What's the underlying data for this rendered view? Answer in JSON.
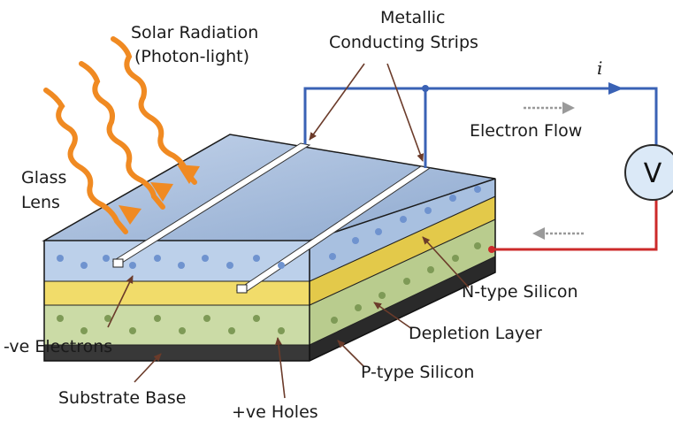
{
  "labels": {
    "solar_radiation_line1": "Solar Radiation",
    "solar_radiation_line2": "(Photon-light)",
    "metallic_line1": "Metallic",
    "metallic_line2": "Conducting Strips",
    "current_symbol": "i",
    "electron_flow": "Electron Flow",
    "voltmeter": "V",
    "glass_line1": "Glass",
    "glass_line2": "Lens",
    "n_type": "N-type Silicon",
    "depletion": "Depletion Layer",
    "p_type": "P-type Silicon",
    "electrons": "-ve Electrons",
    "substrate": "Substrate Base",
    "holes": "+ve Holes"
  },
  "colors": {
    "wire_positive": "#3a62b5",
    "wire_negative": "#cc2a2a",
    "glass_top": "#9fb8d8",
    "n_layer": "#bcd0ea",
    "depletion_layer": "#f1dc6a",
    "p_layer": "#cfdcae",
    "substrate": "#3a3a3a",
    "radiation": "#f08a22",
    "voltmeter_fill": "#dbe9f7"
  }
}
